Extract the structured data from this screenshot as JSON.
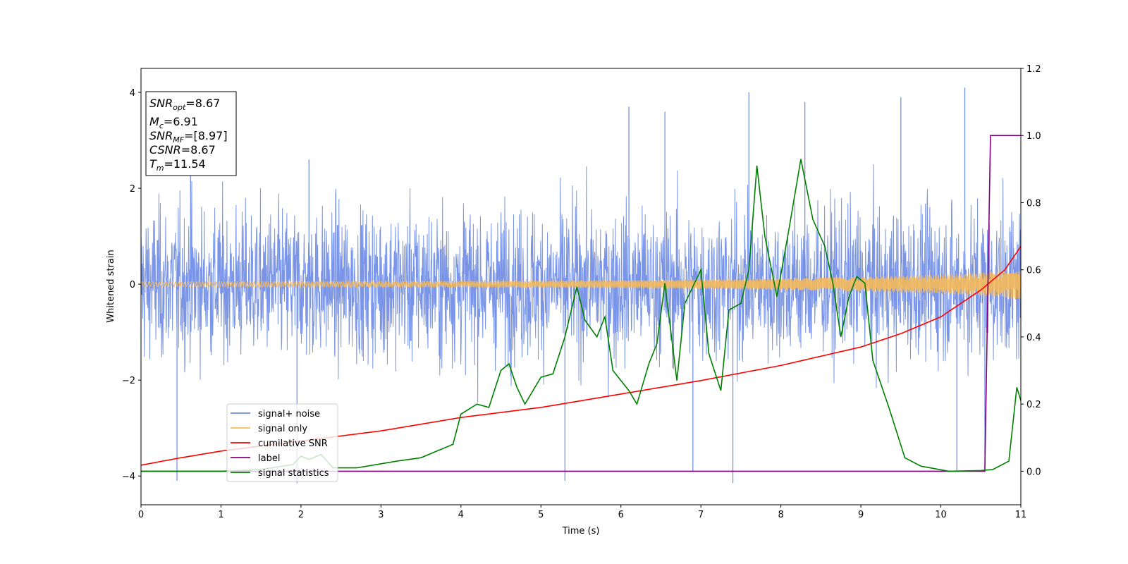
{
  "chart_data": {
    "type": "line",
    "xlabel": "Time (s)",
    "ylabel": "Whitened strain",
    "xlim": [
      0,
      11
    ],
    "ylim_left": [
      -4.6,
      4.5
    ],
    "ylim_right": [
      -0.1,
      1.2
    ],
    "x_ticks": [
      "0",
      "1",
      "2",
      "3",
      "4",
      "5",
      "6",
      "7",
      "8",
      "9",
      "10",
      "11"
    ],
    "y_left_ticks": [
      "4",
      "2",
      "0",
      "−2",
      "−4"
    ],
    "y_right_ticks": [
      "1.2",
      "1.0",
      "0.8",
      "0.6",
      "0.4",
      "0.2",
      "0.0"
    ],
    "info_box": {
      "snr_opt": {
        "base": "SNR",
        "sub": "opt",
        "value": "=8.67"
      },
      "mc": {
        "base": "M",
        "sub": "c",
        "value": "=6.91"
      },
      "snr_mf": {
        "base": "SNR",
        "sub": "MF",
        "value": "=[8.97]"
      },
      "csnr": {
        "base": "CSNR",
        "value": "=8.67"
      },
      "tm": {
        "base": "T",
        "sub": "m",
        "value": "=11.54"
      }
    },
    "legend": {
      "placement": "lower-left",
      "entries": [
        {
          "label": "signal+ noise",
          "color": "#6b8ae6"
        },
        {
          "label": "signal only",
          "color": "#f5b95a"
        },
        {
          "label": "cumilative SNR",
          "color": "#ff0000"
        },
        {
          "label": "label",
          "color": "#800080"
        },
        {
          "label": "signal statistics",
          "color": "#008000"
        }
      ]
    },
    "series": [
      {
        "name": "signal+ noise",
        "axis": "left",
        "color": "#6b8ae6",
        "note_envelope": "dense noise between about -2.9 and +2.9",
        "spikes": [
          [
            0.45,
            -4.1
          ],
          [
            0.62,
            3.1
          ],
          [
            1.95,
            -4.15
          ],
          [
            2.1,
            2.6
          ],
          [
            5.3,
            -4.1
          ],
          [
            6.1,
            3.7
          ],
          [
            6.55,
            3.6
          ],
          [
            6.9,
            -3.9
          ],
          [
            7.4,
            -4.15
          ],
          [
            7.6,
            4.0
          ],
          [
            8.3,
            3.8
          ],
          [
            9.5,
            3.9
          ],
          [
            10.2,
            -3.9
          ],
          [
            10.3,
            4.1
          ],
          [
            10.55,
            -3.55
          ]
        ]
      },
      {
        "name": "signal only",
        "axis": "left",
        "color": "#f5b95a",
        "amplitude_points": [
          [
            0,
            0.05
          ],
          [
            3,
            0.06
          ],
          [
            6,
            0.08
          ],
          [
            8,
            0.12
          ],
          [
            9,
            0.15
          ],
          [
            10,
            0.2
          ],
          [
            10.6,
            0.25
          ],
          [
            11,
            0.3
          ]
        ]
      },
      {
        "name": "cumilative SNR",
        "axis": "right",
        "color": "#ff0000",
        "points": [
          [
            0,
            0.018
          ],
          [
            0.5,
            0.04
          ],
          [
            1,
            0.06
          ],
          [
            2,
            0.09
          ],
          [
            3,
            0.12
          ],
          [
            4,
            0.16
          ],
          [
            5,
            0.19
          ],
          [
            6,
            0.23
          ],
          [
            7,
            0.27
          ],
          [
            8,
            0.315
          ],
          [
            9,
            0.37
          ],
          [
            9.5,
            0.41
          ],
          [
            10,
            0.46
          ],
          [
            10.5,
            0.54
          ],
          [
            10.8,
            0.6
          ],
          [
            11,
            0.67
          ]
        ]
      },
      {
        "name": "label",
        "axis": "right",
        "color": "#800080",
        "points": [
          [
            0,
            0
          ],
          [
            10.55,
            0
          ],
          [
            10.62,
            1.0
          ],
          [
            11,
            1.0
          ]
        ]
      },
      {
        "name": "signal statistics",
        "axis": "right",
        "color": "#008000",
        "points": [
          [
            0,
            0
          ],
          [
            1,
            0
          ],
          [
            1.5,
            0.005
          ],
          [
            1.9,
            0.02
          ],
          [
            2,
            0.045
          ],
          [
            2.1,
            0.035
          ],
          [
            2.25,
            0.05
          ],
          [
            2.4,
            0.01
          ],
          [
            2.7,
            0.01
          ],
          [
            3.2,
            0.03
          ],
          [
            3.5,
            0.04
          ],
          [
            3.7,
            0.06
          ],
          [
            3.9,
            0.08
          ],
          [
            4,
            0.17
          ],
          [
            4.2,
            0.2
          ],
          [
            4.35,
            0.19
          ],
          [
            4.5,
            0.3
          ],
          [
            4.6,
            0.32
          ],
          [
            4.7,
            0.25
          ],
          [
            4.8,
            0.2
          ],
          [
            5,
            0.28
          ],
          [
            5.15,
            0.29
          ],
          [
            5.3,
            0.4
          ],
          [
            5.45,
            0.55
          ],
          [
            5.55,
            0.45
          ],
          [
            5.7,
            0.4
          ],
          [
            5.8,
            0.46
          ],
          [
            5.9,
            0.3
          ],
          [
            6.1,
            0.24
          ],
          [
            6.2,
            0.2
          ],
          [
            6.35,
            0.32
          ],
          [
            6.45,
            0.38
          ],
          [
            6.55,
            0.56
          ],
          [
            6.7,
            0.27
          ],
          [
            6.8,
            0.5
          ],
          [
            7,
            0.6
          ],
          [
            7.1,
            0.35
          ],
          [
            7.25,
            0.24
          ],
          [
            7.35,
            0.48
          ],
          [
            7.5,
            0.5
          ],
          [
            7.6,
            0.6
          ],
          [
            7.7,
            0.91
          ],
          [
            7.8,
            0.7
          ],
          [
            7.95,
            0.52
          ],
          [
            8.1,
            0.72
          ],
          [
            8.25,
            0.93
          ],
          [
            8.4,
            0.75
          ],
          [
            8.55,
            0.67
          ],
          [
            8.65,
            0.56
          ],
          [
            8.75,
            0.4
          ],
          [
            8.85,
            0.52
          ],
          [
            8.95,
            0.58
          ],
          [
            9.05,
            0.56
          ],
          [
            9.15,
            0.33
          ],
          [
            9.35,
            0.19
          ],
          [
            9.55,
            0.04
          ],
          [
            9.75,
            0.015
          ],
          [
            10.1,
            0
          ],
          [
            10.5,
            0.002
          ],
          [
            10.65,
            0.005
          ],
          [
            10.85,
            0.03
          ],
          [
            10.95,
            0.25
          ],
          [
            11,
            0.21
          ]
        ]
      }
    ]
  }
}
